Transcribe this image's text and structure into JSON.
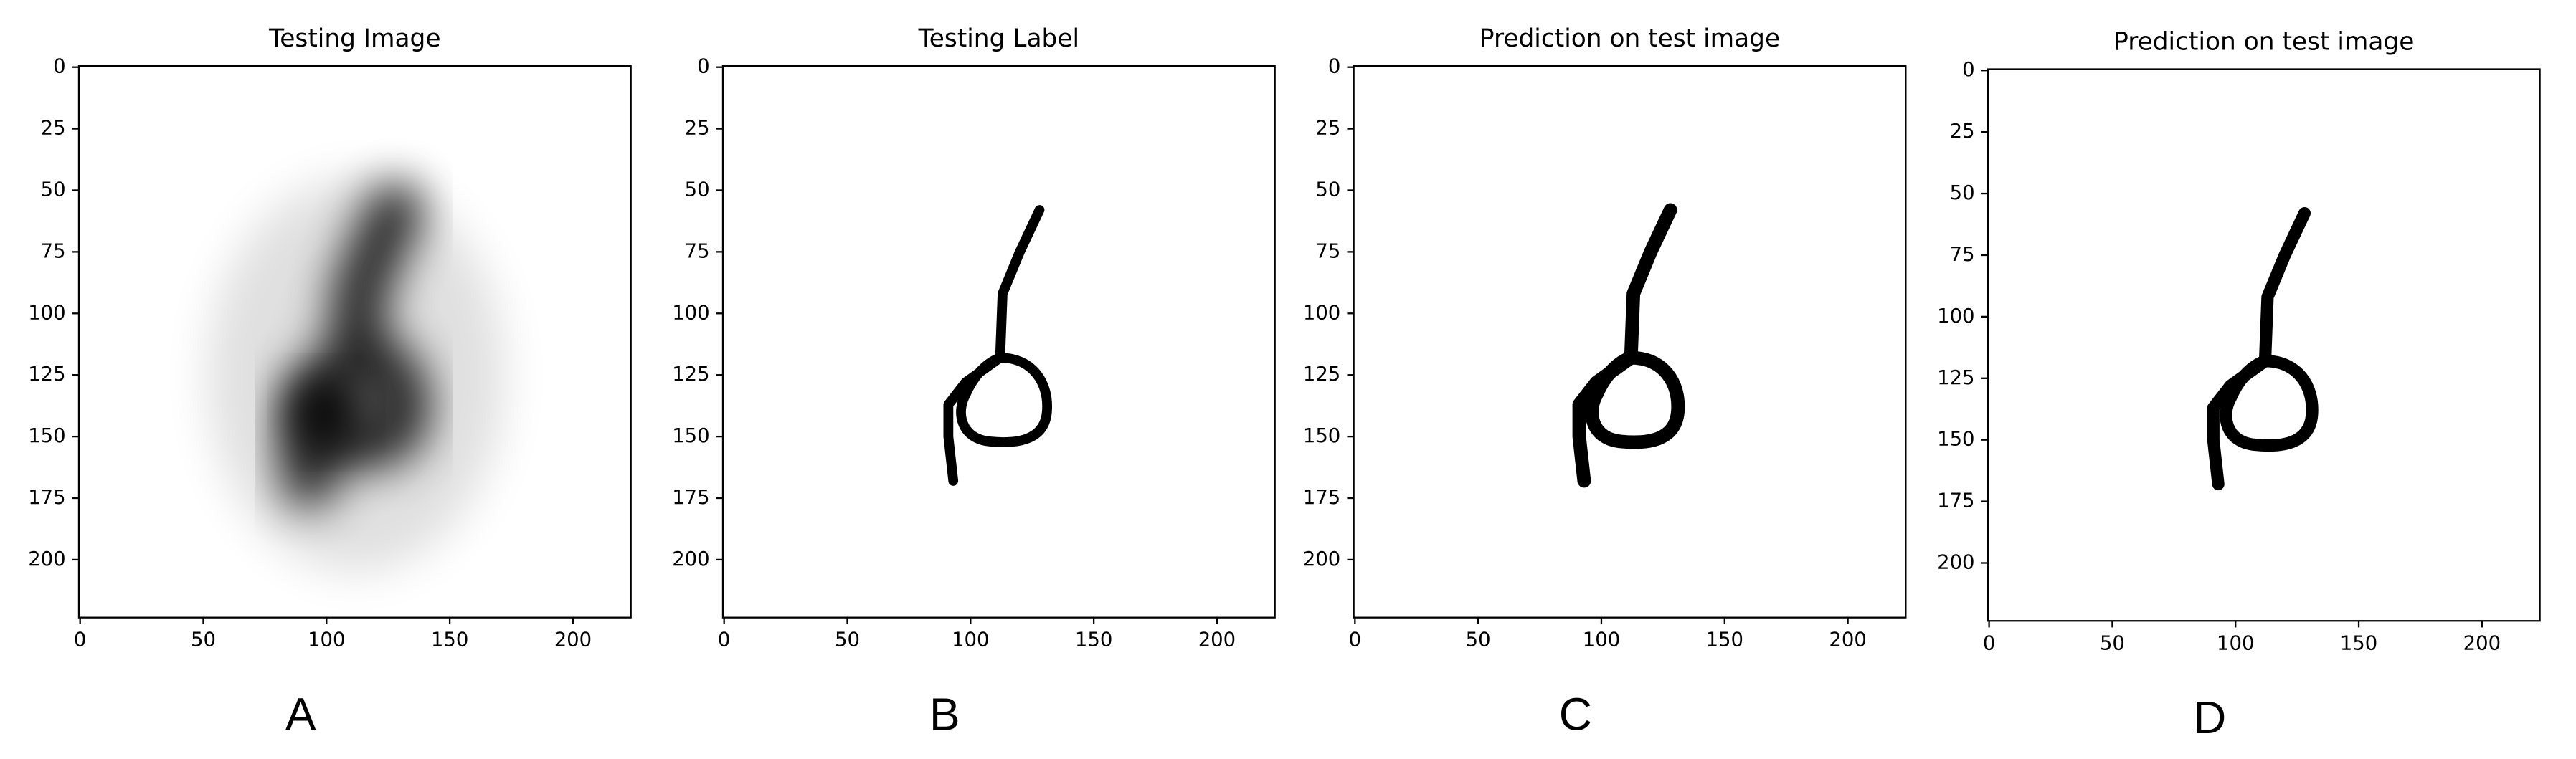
{
  "chart_data": [
    {
      "type": "image",
      "title": "Testing Image",
      "panel_label": "A",
      "xlim": [
        -0.5,
        223.5
      ],
      "ylim": [
        223.5,
        -0.5
      ],
      "xticks": [
        0,
        50,
        100,
        150,
        200
      ],
      "yticks": [
        0,
        25,
        50,
        75,
        100,
        125,
        150,
        175,
        200
      ]
    },
    {
      "type": "image",
      "title": "Testing Label",
      "panel_label": "B",
      "xlim": [
        -0.5,
        223.5
      ],
      "ylim": [
        223.5,
        -0.5
      ],
      "xticks": [
        0,
        50,
        100,
        150,
        200
      ],
      "yticks": [
        0,
        25,
        50,
        75,
        100,
        125,
        150,
        175,
        200
      ]
    },
    {
      "type": "image",
      "title": "Prediction on test image",
      "panel_label": "C",
      "xlim": [
        -0.5,
        223.5
      ],
      "ylim": [
        223.5,
        -0.5
      ],
      "xticks": [
        0,
        50,
        100,
        150,
        200
      ],
      "yticks": [
        0,
        25,
        50,
        75,
        100,
        125,
        150,
        175,
        200
      ]
    },
    {
      "type": "image",
      "title": "Prediction on test image",
      "panel_label": "D",
      "xlim": [
        -0.5,
        223.5
      ],
      "ylim": [
        223.5,
        -0.5
      ],
      "xticks": [
        0,
        50,
        100,
        150,
        200
      ],
      "yticks": [
        0,
        25,
        50,
        75,
        100,
        125,
        150,
        175,
        200
      ]
    }
  ]
}
